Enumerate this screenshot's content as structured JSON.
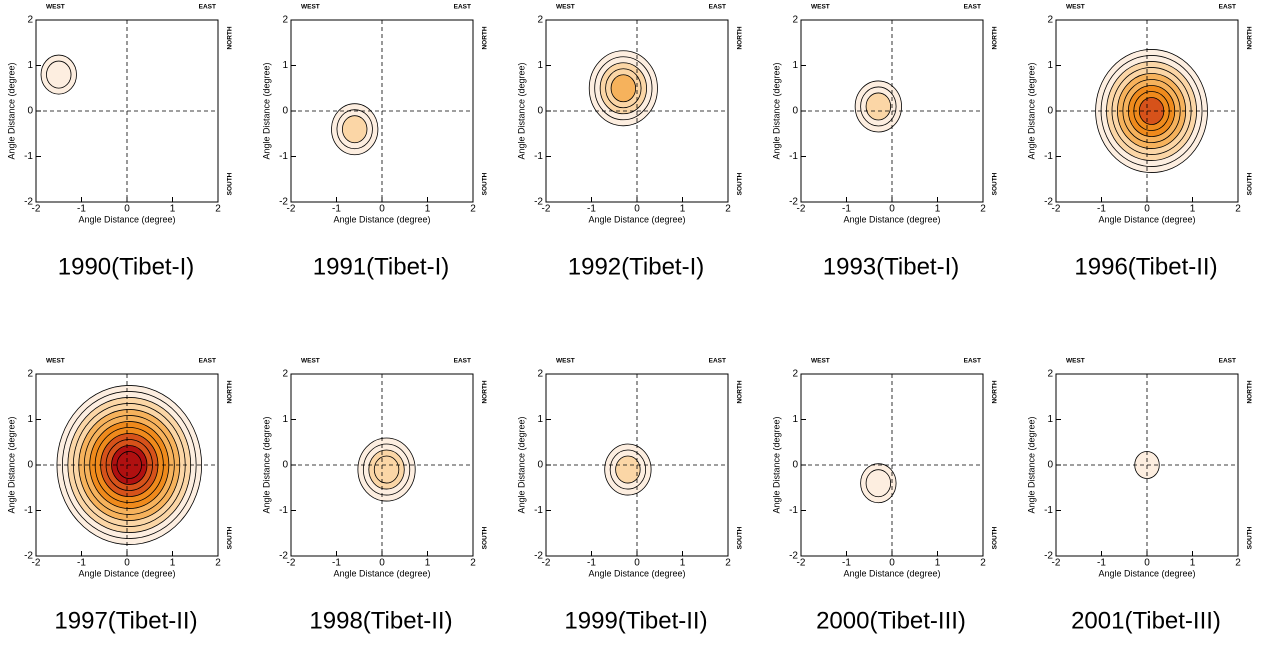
{
  "chart_data": [
    {
      "type": "contour",
      "title": "1990(Tibet-I)",
      "xlabel": "Angle Distance (degree)",
      "ylabel": "Angle Distance (degree)",
      "annotations": [
        "WEST",
        "EAST",
        "NORTH",
        "SOUTH"
      ],
      "xlim": [
        -2,
        2
      ],
      "ylim": [
        -2,
        2
      ],
      "xticks": [
        -2,
        -1,
        0,
        1,
        2
      ],
      "yticks": [
        -2,
        -1,
        0,
        1,
        2
      ],
      "peak_x": -1.5,
      "peak_y": 0.8,
      "peak_level": 2
    },
    {
      "type": "contour",
      "title": "1991(Tibet-I)",
      "xlabel": "Angle Distance (degree)",
      "ylabel": "Angle Distance (degree)",
      "annotations": [
        "WEST",
        "EAST",
        "NORTH",
        "SOUTH"
      ],
      "xlim": [
        -2,
        2
      ],
      "ylim": [
        -2,
        2
      ],
      "xticks": [
        -2,
        -1,
        0,
        1,
        2
      ],
      "yticks": [
        -2,
        -1,
        0,
        1,
        2
      ],
      "peak_x": -0.6,
      "peak_y": -0.4,
      "peak_level": 3
    },
    {
      "type": "contour",
      "title": "1992(Tibet-I)",
      "xlabel": "Angle Distance (degree)",
      "ylabel": "Angle Distance (degree)",
      "annotations": [
        "WEST",
        "EAST",
        "NORTH",
        "SOUTH"
      ],
      "xlim": [
        -2,
        2
      ],
      "ylim": [
        -2,
        2
      ],
      "xticks": [
        -2,
        -1,
        0,
        1,
        2
      ],
      "yticks": [
        -2,
        -1,
        0,
        1,
        2
      ],
      "peak_x": -0.3,
      "peak_y": 0.5,
      "peak_level": 5
    },
    {
      "type": "contour",
      "title": "1993(Tibet-I)",
      "xlabel": "Angle Distance (degree)",
      "ylabel": "Angle Distance (degree)",
      "annotations": [
        "WEST",
        "EAST",
        "NORTH",
        "SOUTH"
      ],
      "xlim": [
        -2,
        2
      ],
      "ylim": [
        -2,
        2
      ],
      "xticks": [
        -2,
        -1,
        0,
        1,
        2
      ],
      "yticks": [
        -2,
        -1,
        0,
        1,
        2
      ],
      "peak_x": -0.3,
      "peak_y": 0.1,
      "peak_level": 3
    },
    {
      "type": "contour",
      "title": "1996(Tibet-II)",
      "xlabel": "Angle Distance (degree)",
      "ylabel": "Angle Distance (degree)",
      "annotations": [
        "WEST",
        "EAST",
        "NORTH",
        "SOUTH"
      ],
      "xlim": [
        -2,
        2
      ],
      "ylim": [
        -2,
        2
      ],
      "xticks": [
        -2,
        -1,
        0,
        1,
        2
      ],
      "yticks": [
        -2,
        -1,
        0,
        1,
        2
      ],
      "peak_x": 0.1,
      "peak_y": 0.0,
      "peak_level": 9
    },
    {
      "type": "contour",
      "title": "1997(Tibet-II)",
      "xlabel": "Angle Distance (degree)",
      "ylabel": "Angle Distance (degree)",
      "annotations": [
        "WEST",
        "EAST",
        "NORTH",
        "SOUTH"
      ],
      "xlim": [
        -2,
        2
      ],
      "ylim": [
        -2,
        2
      ],
      "xticks": [
        -2,
        -1,
        0,
        1,
        2
      ],
      "yticks": [
        -2,
        -1,
        0,
        1,
        2
      ],
      "peak_x": 0.05,
      "peak_y": 0.0,
      "peak_level": 12
    },
    {
      "type": "contour",
      "title": "1998(Tibet-II)",
      "xlabel": "Angle Distance (degree)",
      "ylabel": "Angle Distance (degree)",
      "annotations": [
        "WEST",
        "EAST",
        "NORTH",
        "SOUTH"
      ],
      "xlim": [
        -2,
        2
      ],
      "ylim": [
        -2,
        2
      ],
      "xticks": [
        -2,
        -1,
        0,
        1,
        2
      ],
      "yticks": [
        -2,
        -1,
        0,
        1,
        2
      ],
      "peak_x": 0.1,
      "peak_y": -0.1,
      "peak_level": 4
    },
    {
      "type": "contour",
      "title": "1999(Tibet-II)",
      "xlabel": "Angle Distance (degree)",
      "ylabel": "Angle Distance (degree)",
      "annotations": [
        "WEST",
        "EAST",
        "NORTH",
        "SOUTH"
      ],
      "xlim": [
        -2,
        2
      ],
      "ylim": [
        -2,
        2
      ],
      "xticks": [
        -2,
        -1,
        0,
        1,
        2
      ],
      "yticks": [
        -2,
        -1,
        0,
        1,
        2
      ],
      "peak_x": -0.2,
      "peak_y": -0.1,
      "peak_level": 3
    },
    {
      "type": "contour",
      "title": "2000(Tibet-III)",
      "xlabel": "Angle Distance (degree)",
      "ylabel": "Angle Distance (degree)",
      "annotations": [
        "WEST",
        "EAST",
        "NORTH",
        "SOUTH"
      ],
      "xlim": [
        -2,
        2
      ],
      "ylim": [
        -2,
        2
      ],
      "xticks": [
        -2,
        -1,
        0,
        1,
        2
      ],
      "yticks": [
        -2,
        -1,
        0,
        1,
        2
      ],
      "peak_x": -0.3,
      "peak_y": -0.4,
      "peak_level": 2
    },
    {
      "type": "contour",
      "title": "2001(Tibet-III)",
      "xlabel": "Angle Distance (degree)",
      "ylabel": "Angle Distance (degree)",
      "annotations": [
        "WEST",
        "EAST",
        "NORTH",
        "SOUTH"
      ],
      "xlim": [
        -2,
        2
      ],
      "ylim": [
        -2,
        2
      ],
      "xticks": [
        -2,
        -1,
        0,
        1,
        2
      ],
      "yticks": [
        -2,
        -1,
        0,
        1,
        2
      ],
      "peak_x": 0.0,
      "peak_y": 0.0,
      "peak_level": 1
    }
  ]
}
